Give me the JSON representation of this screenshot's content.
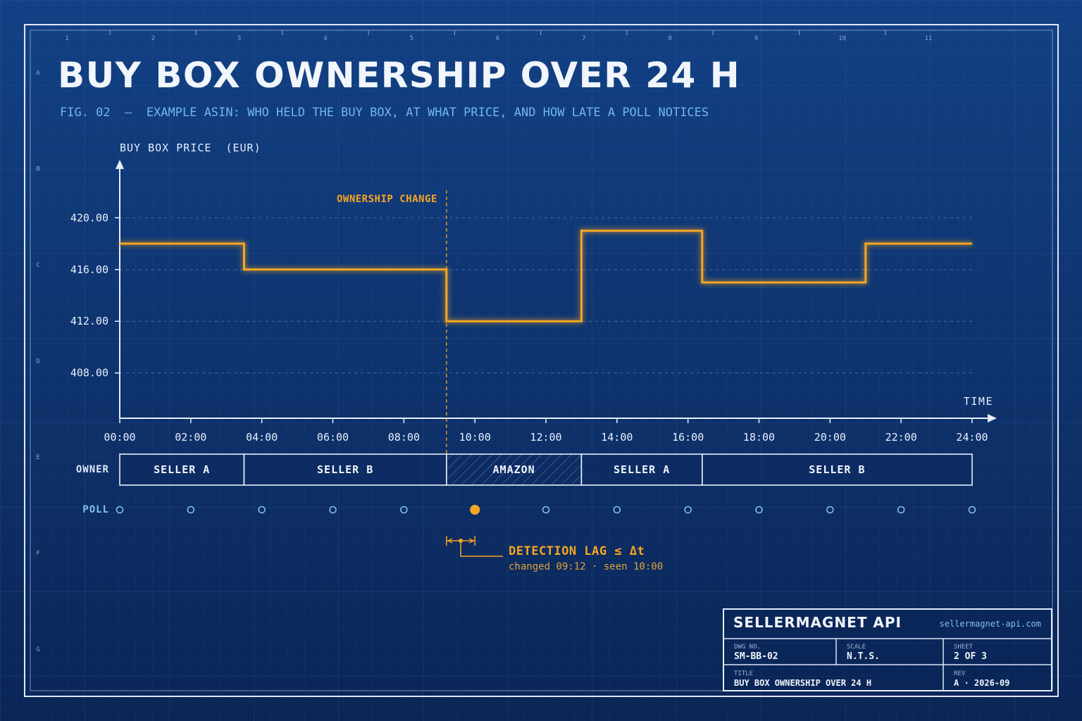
{
  "header": {
    "title": "BUY BOX OWNERSHIP OVER 24 H",
    "subtitle": "FIG. 02  —  EXAMPLE ASIN: WHO HELD THE BUY BOX, AT WHAT PRICE, AND HOW LATE A POLL NOTICES"
  },
  "frame": {
    "column_labels": [
      "1",
      "2",
      "3",
      "4",
      "5",
      "6",
      "7",
      "8",
      "9",
      "10",
      "11"
    ],
    "row_labels": [
      "A",
      "B",
      "C",
      "D",
      "E",
      "F",
      "G"
    ]
  },
  "chart_data": {
    "type": "line",
    "step": true,
    "ylabel": "BUY BOX PRICE  (EUR)",
    "xlabel": "TIME",
    "ylim": [
      404.5,
      423.5
    ],
    "xlim": [
      0,
      24
    ],
    "y_ticks": [
      408,
      412,
      416,
      420
    ],
    "y_tick_labels": [
      "408.00",
      "412.00",
      "416.00",
      "420.00"
    ],
    "x_ticks": [
      0,
      2,
      4,
      6,
      8,
      10,
      12,
      14,
      16,
      18,
      20,
      22,
      24
    ],
    "x_tick_labels": [
      "00:00",
      "02:00",
      "04:00",
      "06:00",
      "08:00",
      "10:00",
      "12:00",
      "14:00",
      "16:00",
      "18:00",
      "20:00",
      "22:00",
      "24:00"
    ],
    "grid": true,
    "series": [
      {
        "points": [
          [
            0,
            418
          ],
          [
            3.5,
            418
          ],
          [
            3.5,
            416
          ],
          [
            9.2,
            416
          ],
          [
            9.2,
            412
          ],
          [
            13.0,
            412
          ],
          [
            13.0,
            419
          ],
          [
            16.4,
            419
          ],
          [
            16.4,
            415
          ],
          [
            21.0,
            415
          ],
          [
            21.0,
            418
          ],
          [
            24,
            418
          ]
        ]
      }
    ],
    "annotations": [
      {
        "label": "OWNERSHIP CHANGE",
        "x": 9.2
      }
    ],
    "owner_label": "OWNER",
    "owners": [
      {
        "name": "SELLER A",
        "start": 0,
        "end": 3.5,
        "hatched": false
      },
      {
        "name": "SELLER B",
        "start": 3.5,
        "end": 9.2,
        "hatched": false
      },
      {
        "name": "AMAZON",
        "start": 9.2,
        "end": 13.0,
        "hatched": true
      },
      {
        "name": "SELLER A",
        "start": 13.0,
        "end": 16.4,
        "hatched": false
      },
      {
        "name": "SELLER B",
        "start": 16.4,
        "end": 24,
        "hatched": false
      }
    ],
    "poll_label": "POLL",
    "polls": [
      0,
      2,
      4,
      6,
      8,
      10,
      12,
      14,
      16,
      18,
      20,
      22,
      24
    ],
    "detected_poll": 10,
    "lag": {
      "title": "DETECTION LAG ≤ Δt",
      "detail": "changed 09:12 · seen 10:00",
      "from": 9.2,
      "to": 10
    }
  },
  "title_block": {
    "company": "SELLERMAGNET API",
    "website": "sellermagnet-api.com",
    "dwg_no_label": "DWG NO.",
    "dwg_no": "SM-BB-02",
    "scale_label": "SCALE",
    "scale": "N.T.S.",
    "sheet_label": "SHEET",
    "sheet": "2 OF 3",
    "title_label": "TITLE",
    "title": "BUY BOX OWNERSHIP OVER 24 H",
    "rev_label": "REV",
    "rev": "A · 2026-09"
  },
  "colors": {
    "background": "#0f3168",
    "accent": "#f5a623",
    "line_white": "#e6eefc",
    "label_blue": "#7fc0f2"
  }
}
